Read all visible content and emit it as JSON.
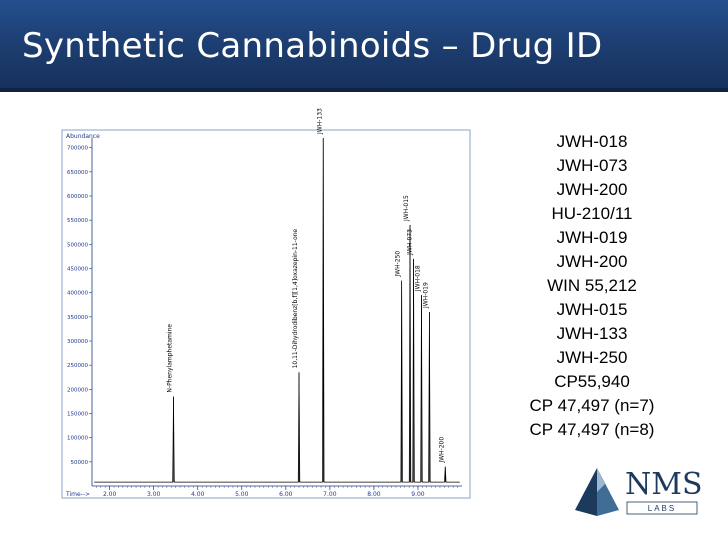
{
  "slide": {
    "title": "Synthetic Cannabinoids – Drug ID"
  },
  "chart_data": {
    "type": "line",
    "ylabel": "Abundance",
    "xlabel": "Time-->",
    "yticks": [
      50000,
      100000,
      150000,
      200000,
      250000,
      300000,
      350000,
      400000,
      450000,
      500000,
      550000,
      600000,
      650000,
      700000
    ],
    "ytick_labels": [
      "50000",
      "100000",
      "150000",
      "200000",
      "250000",
      "300000",
      "350000",
      "400000",
      "450000",
      "500000",
      "550000",
      "600000",
      "650000",
      "700000"
    ],
    "xticks": [
      2.0,
      3.0,
      4.0,
      5.0,
      6.0,
      7.0,
      8.0,
      9.0
    ],
    "xtick_labels": [
      "2.00",
      "3.00",
      "4.00",
      "5.00",
      "6.00",
      "7.00",
      "8.00",
      "9.00"
    ],
    "xlim": [
      1.6,
      10.0
    ],
    "ylim": [
      0,
      720000
    ],
    "peaks": [
      {
        "x": 3.45,
        "y": 185000,
        "label": "N-Phenylamphetamine"
      },
      {
        "x": 6.3,
        "y": 235000,
        "label": "10,11-Dihydrodibenz[b,f][1,4]oxazepin-11-one"
      },
      {
        "x": 6.85,
        "y": 720000,
        "label": "JWH-133"
      },
      {
        "x": 8.63,
        "y": 425000,
        "label": "JWH-250"
      },
      {
        "x": 8.82,
        "y": 540000,
        "label": "JWH-015"
      },
      {
        "x": 8.9,
        "y": 470000,
        "label": "JWH-073"
      },
      {
        "x": 9.08,
        "y": 395000,
        "label": "JWH-018"
      },
      {
        "x": 9.26,
        "y": 360000,
        "label": "JWH-019"
      },
      {
        "x": 9.62,
        "y": 40000,
        "label": "JWH-200"
      }
    ]
  },
  "compounds": [
    "JWH-018",
    "JWH-073",
    "JWH-200",
    "HU-210/11",
    "JWH-019",
    "JWH-200",
    "WIN 55,212",
    "JWH-015",
    "JWH-133",
    "JWH-250",
    "CP55,940",
    "CP 47,497 (n=7)",
    "CP 47,497 (n=8)"
  ],
  "logo": {
    "name": "NMS",
    "sub": "LABS",
    "colors": {
      "dark": "#1b3a5c",
      "mid": "#3f6d96",
      "light": "#9db8d2"
    }
  }
}
